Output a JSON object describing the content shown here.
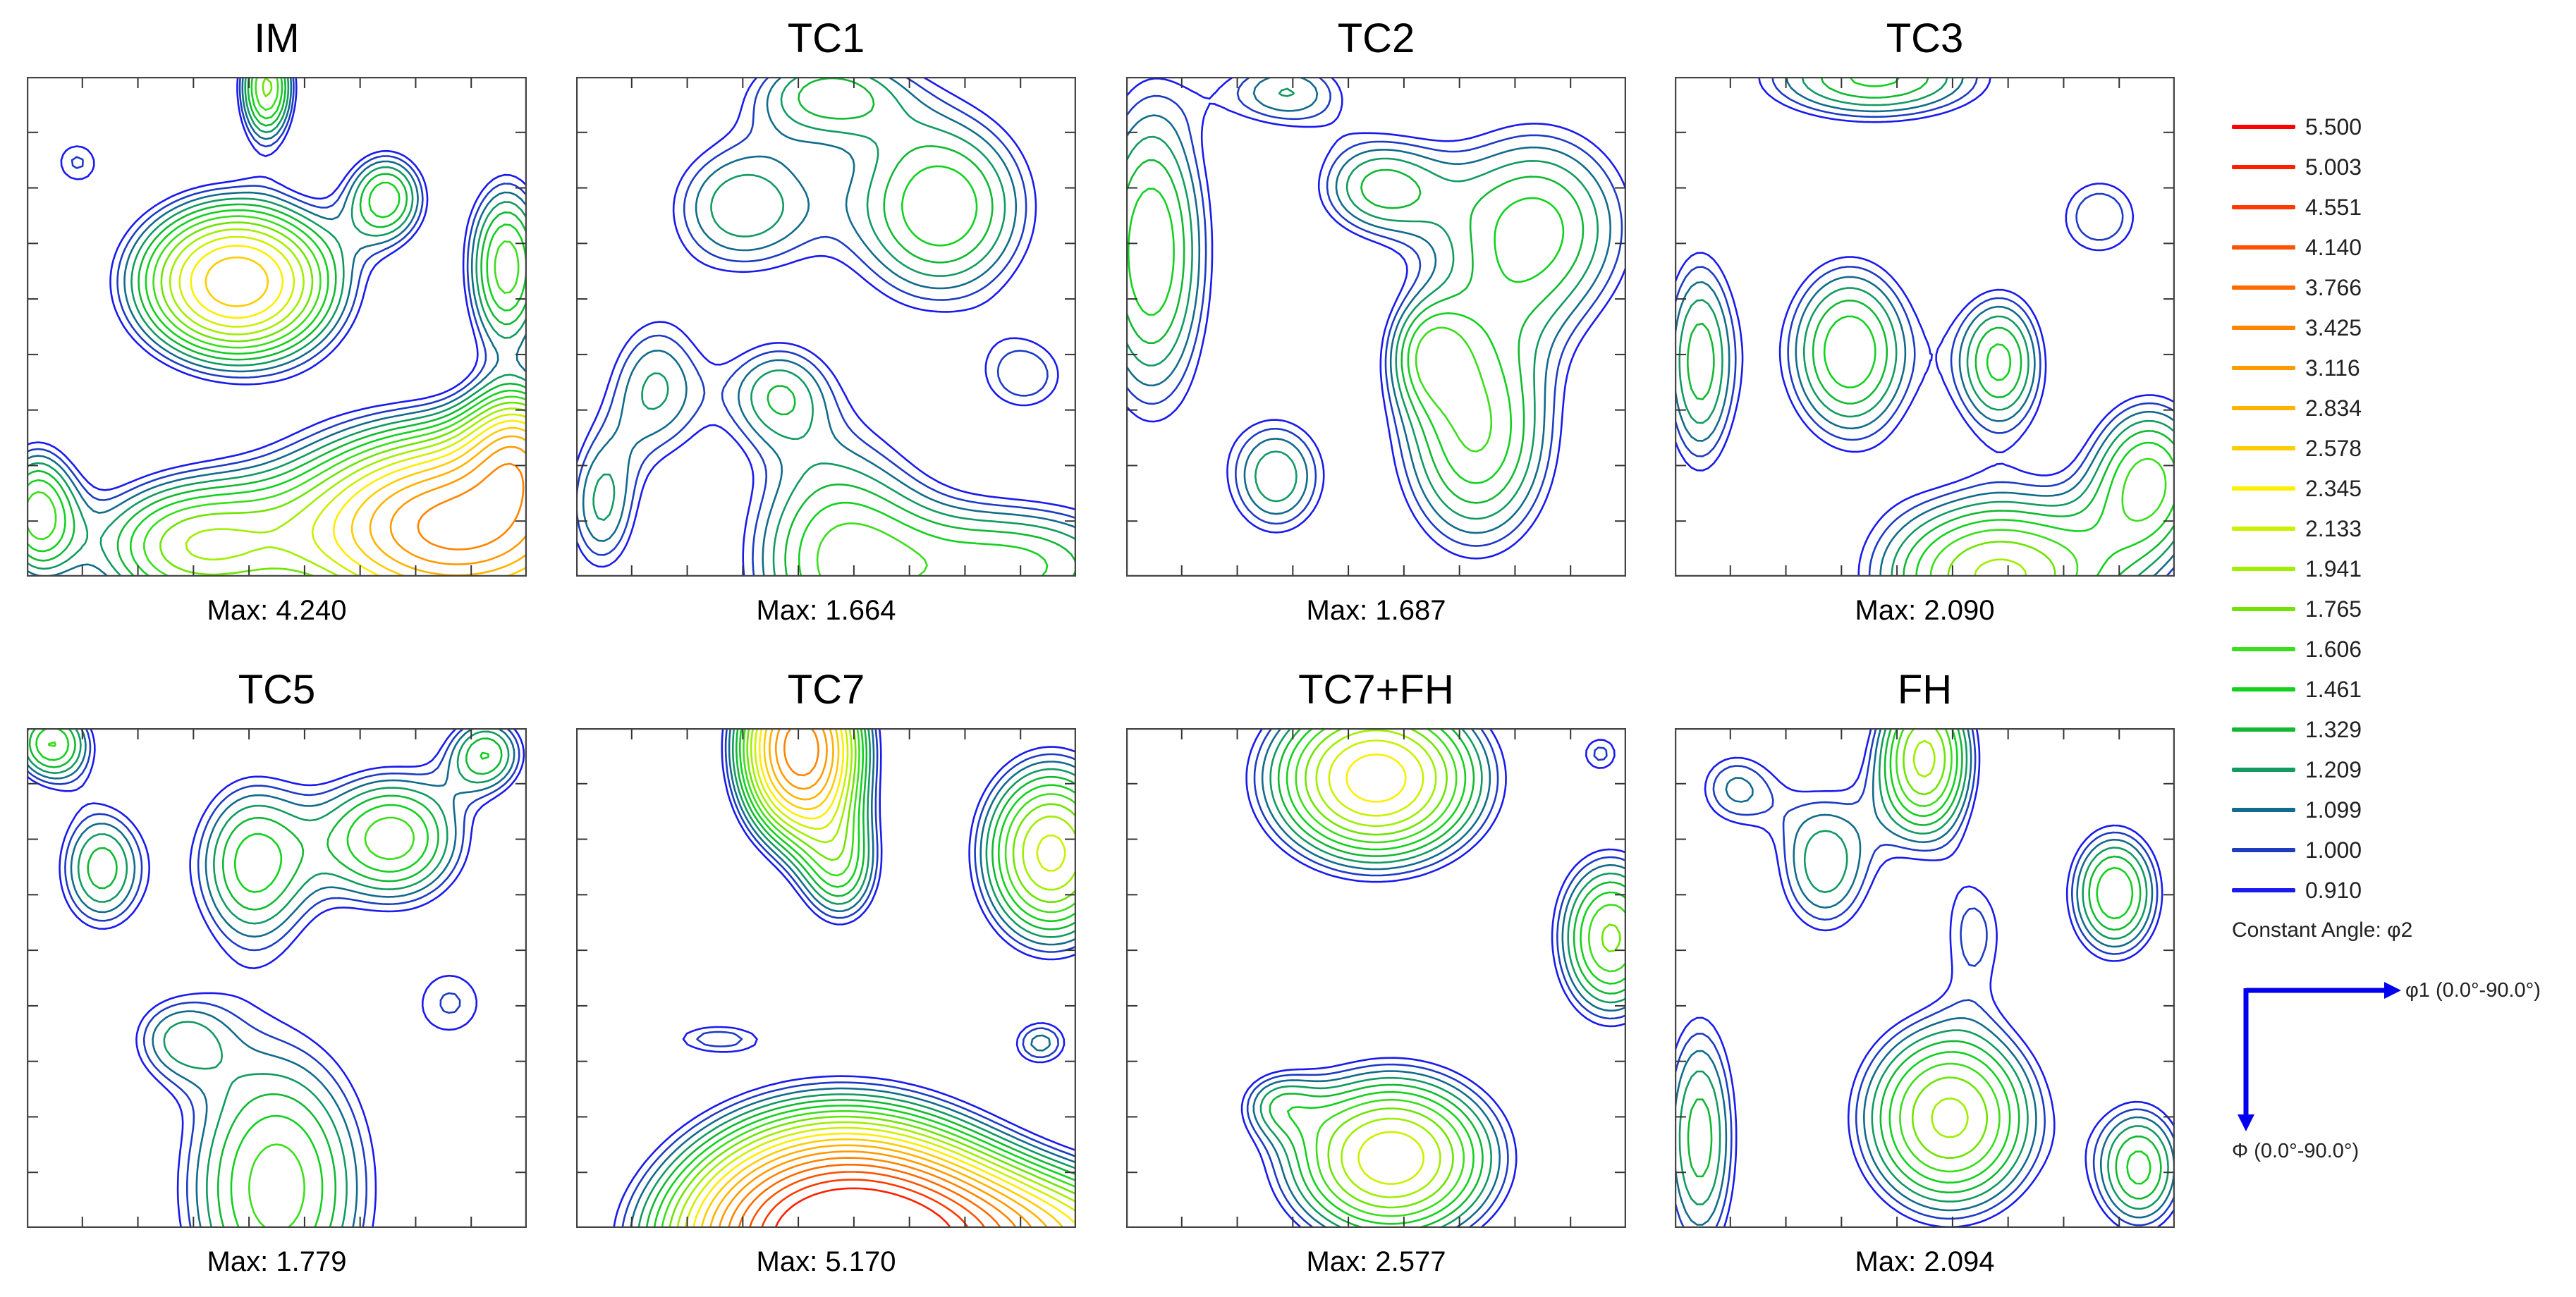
{
  "panels": [
    {
      "title": "IM",
      "max_label": "Max: 4.240",
      "max": 4.24,
      "peaks": [
        [
          0.42,
          0.41,
          2.8,
          0.14,
          0.11
        ],
        [
          0.86,
          0.9,
          3.6,
          0.22,
          0.13
        ],
        [
          0.33,
          0.94,
          1.8,
          0.15,
          0.1
        ],
        [
          0.48,
          0.02,
          1.8,
          0.04,
          0.08
        ],
        [
          0.72,
          0.24,
          1.5,
          0.06,
          0.07
        ],
        [
          0.96,
          0.38,
          1.7,
          0.06,
          0.13
        ],
        [
          0.98,
          0.74,
          1.8,
          0.07,
          0.08
        ],
        [
          0.02,
          0.87,
          1.6,
          0.06,
          0.1
        ],
        [
          0.1,
          0.17,
          1.0,
          0.05,
          0.05
        ]
      ]
    },
    {
      "title": "TC1",
      "max_label": "Max: 1.664",
      "max": 1.664,
      "peaks": [
        [
          0.33,
          0.26,
          1.3,
          0.12,
          0.11
        ],
        [
          0.73,
          0.26,
          1.6,
          0.14,
          0.15
        ],
        [
          0.16,
          0.62,
          1.2,
          0.08,
          0.12
        ],
        [
          0.4,
          0.63,
          1.15,
          0.08,
          0.08
        ],
        [
          0.52,
          0.96,
          1.5,
          0.14,
          0.2
        ],
        [
          0.88,
          0.98,
          1.5,
          0.2,
          0.1
        ],
        [
          0.5,
          0.03,
          1.3,
          0.12,
          0.07
        ],
        [
          0.05,
          0.86,
          1.2,
          0.06,
          0.12
        ],
        [
          0.9,
          0.6,
          1.05,
          0.08,
          0.07
        ]
      ]
    },
    {
      "title": "TC2",
      "max_label": "Max: 1.687",
      "max": 1.687,
      "peaks": [
        [
          0.05,
          0.35,
          1.6,
          0.09,
          0.25
        ],
        [
          0.7,
          0.72,
          1.6,
          0.12,
          0.18
        ],
        [
          0.82,
          0.3,
          1.5,
          0.15,
          0.16
        ],
        [
          0.5,
          0.22,
          1.3,
          0.1,
          0.08
        ],
        [
          0.32,
          0.03,
          1.2,
          0.1,
          0.06
        ],
        [
          0.3,
          0.8,
          1.3,
          0.08,
          0.1
        ],
        [
          0.6,
          0.55,
          1.1,
          0.06,
          0.08
        ]
      ]
    },
    {
      "title": "TC3",
      "max_label": "Max: 2.090",
      "max": 2.09,
      "peaks": [
        [
          0.35,
          0.55,
          1.6,
          0.1,
          0.14
        ],
        [
          0.65,
          0.57,
          1.5,
          0.07,
          0.11
        ],
        [
          0.05,
          0.57,
          1.4,
          0.06,
          0.18
        ],
        [
          0.95,
          0.8,
          1.6,
          0.09,
          0.12
        ],
        [
          0.65,
          1.0,
          2.0,
          0.18,
          0.12
        ],
        [
          0.4,
          0.0,
          1.5,
          0.18,
          0.07
        ],
        [
          0.85,
          0.28,
          1.1,
          0.08,
          0.08
        ]
      ]
    },
    {
      "title": "TC5",
      "max_label": "Max: 1.779",
      "max": 1.779,
      "peaks": [
        [
          0.73,
          0.22,
          1.7,
          0.11,
          0.1
        ],
        [
          0.45,
          0.27,
          1.5,
          0.09,
          0.13
        ],
        [
          0.15,
          0.28,
          1.4,
          0.07,
          0.1
        ],
        [
          0.5,
          0.92,
          1.7,
          0.14,
          0.22
        ],
        [
          0.05,
          0.03,
          1.6,
          0.06,
          0.06
        ],
        [
          0.92,
          0.05,
          1.4,
          0.06,
          0.06
        ],
        [
          0.85,
          0.55,
          1.0,
          0.08,
          0.08
        ],
        [
          0.3,
          0.62,
          1.1,
          0.08,
          0.07
        ]
      ]
    },
    {
      "title": "TC7",
      "max_label": "Max: 5.170",
      "max": 5.17,
      "peaks": [
        [
          0.53,
          1.02,
          5.1,
          0.2,
          0.15
        ],
        [
          0.8,
          1.03,
          2.6,
          0.3,
          0.1
        ],
        [
          0.45,
          0.04,
          3.7,
          0.08,
          0.12
        ],
        [
          0.53,
          0.28,
          1.4,
          0.06,
          0.09
        ],
        [
          0.95,
          0.25,
          2.2,
          0.1,
          0.13
        ],
        [
          0.28,
          0.62,
          1.0,
          0.09,
          0.03
        ],
        [
          0.93,
          0.63,
          1.1,
          0.05,
          0.04
        ]
      ]
    },
    {
      "title": "TC7+FH",
      "max_label": "Max: 2.577",
      "max": 2.577,
      "peaks": [
        [
          0.5,
          0.1,
          2.5,
          0.15,
          0.12
        ],
        [
          0.53,
          0.86,
          2.3,
          0.15,
          0.12
        ],
        [
          0.97,
          0.42,
          1.8,
          0.08,
          0.12
        ],
        [
          0.3,
          0.75,
          1.0,
          0.06,
          0.05
        ],
        [
          0.95,
          0.05,
          1.0,
          0.04,
          0.04
        ]
      ]
    },
    {
      "title": "FH",
      "max_label": "Max: 2.094",
      "max": 2.094,
      "peaks": [
        [
          0.55,
          0.78,
          2.0,
          0.13,
          0.14
        ],
        [
          0.5,
          0.06,
          2.0,
          0.07,
          0.12
        ],
        [
          0.88,
          0.33,
          1.6,
          0.07,
          0.1
        ],
        [
          0.3,
          0.27,
          1.3,
          0.08,
          0.12
        ],
        [
          0.05,
          0.82,
          1.4,
          0.06,
          0.2
        ],
        [
          0.93,
          0.88,
          1.5,
          0.07,
          0.1
        ],
        [
          0.12,
          0.12,
          1.1,
          0.07,
          0.07
        ],
        [
          0.6,
          0.4,
          1.0,
          0.06,
          0.1
        ]
      ]
    }
  ],
  "legend": {
    "levels": [
      {
        "value": "5.500",
        "color": "#ff0000"
      },
      {
        "value": "5.003",
        "color": "#ff1e00"
      },
      {
        "value": "4.551",
        "color": "#ff3a00"
      },
      {
        "value": "4.140",
        "color": "#ff5200"
      },
      {
        "value": "3.766",
        "color": "#ff6a00"
      },
      {
        "value": "3.425",
        "color": "#ff8400"
      },
      {
        "value": "3.116",
        "color": "#ff9a00"
      },
      {
        "value": "2.834",
        "color": "#ffb200"
      },
      {
        "value": "2.578",
        "color": "#ffcc00"
      },
      {
        "value": "2.345",
        "color": "#ffee00"
      },
      {
        "value": "2.133",
        "color": "#ccf000"
      },
      {
        "value": "1.941",
        "color": "#a0ee00"
      },
      {
        "value": "1.765",
        "color": "#6ee400"
      },
      {
        "value": "1.606",
        "color": "#3cde1c"
      },
      {
        "value": "1.461",
        "color": "#12d21e"
      },
      {
        "value": "1.329",
        "color": "#12b832"
      },
      {
        "value": "1.209",
        "color": "#129a62"
      },
      {
        "value": "1.099",
        "color": "#126b8c"
      },
      {
        "value": "1.000",
        "color": "#1e3cc2"
      },
      {
        "value": "0.910",
        "color": "#1a1aee"
      }
    ],
    "constant_angle_label": "Constant Angle: φ2",
    "x_axis_label": "φ1 (0.0°-90.0°)",
    "y_axis_label": "Φ (0.0°-90.0°)",
    "arrow_color": "#0000ee"
  }
}
